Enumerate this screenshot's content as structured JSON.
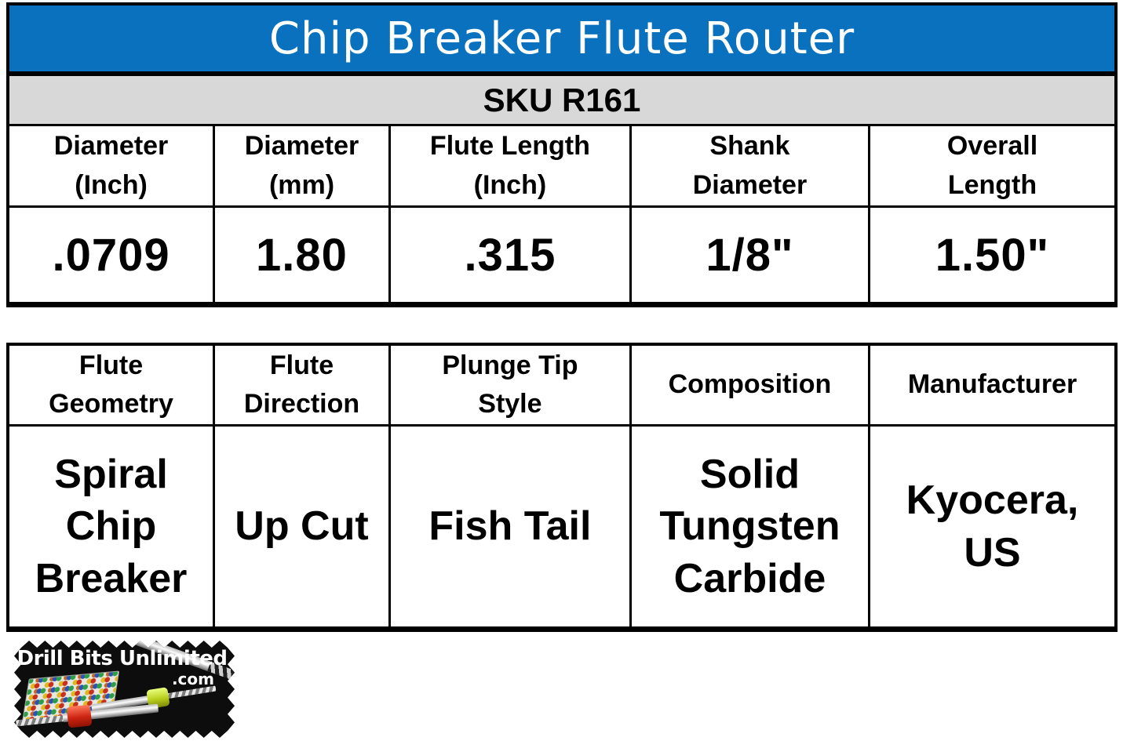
{
  "colors": {
    "page_bg": "#ffffff",
    "title_bg": "#0a71bf",
    "title_text": "#ffffff",
    "sku_bg": "#d8d8d8",
    "cell_text": "#000000",
    "border": "#000000"
  },
  "product": {
    "title": "Chip Breaker Flute Router",
    "sku": "SKU R161"
  },
  "spec": {
    "headers": [
      [
        "Diameter",
        "(Inch)"
      ],
      [
        "Diameter",
        "(mm)"
      ],
      [
        "Flute Length",
        "(Inch)"
      ],
      [
        "Shank",
        "Diameter"
      ],
      [
        "Overall",
        "Length"
      ]
    ],
    "values": [
      ".0709",
      "1.80",
      ".315",
      "1/8\"",
      "1.50\""
    ]
  },
  "features": {
    "headers": [
      [
        "Flute",
        "Geometry"
      ],
      [
        "Flute",
        "Direction"
      ],
      [
        "Plunge Tip",
        "Style"
      ],
      [
        "Composition",
        ""
      ],
      [
        "Manufacturer",
        ""
      ]
    ],
    "values": [
      [
        "Spiral",
        "Chip",
        "Breaker"
      ],
      [
        "Up Cut",
        "",
        ""
      ],
      [
        "Fish Tail",
        "",
        ""
      ],
      [
        "Solid",
        "Tungsten",
        "Carbide"
      ],
      [
        "Kyocera,",
        "US",
        ""
      ]
    ]
  },
  "logo": {
    "brand": "Drill Bits Unlimited",
    "suffix": ".com"
  }
}
